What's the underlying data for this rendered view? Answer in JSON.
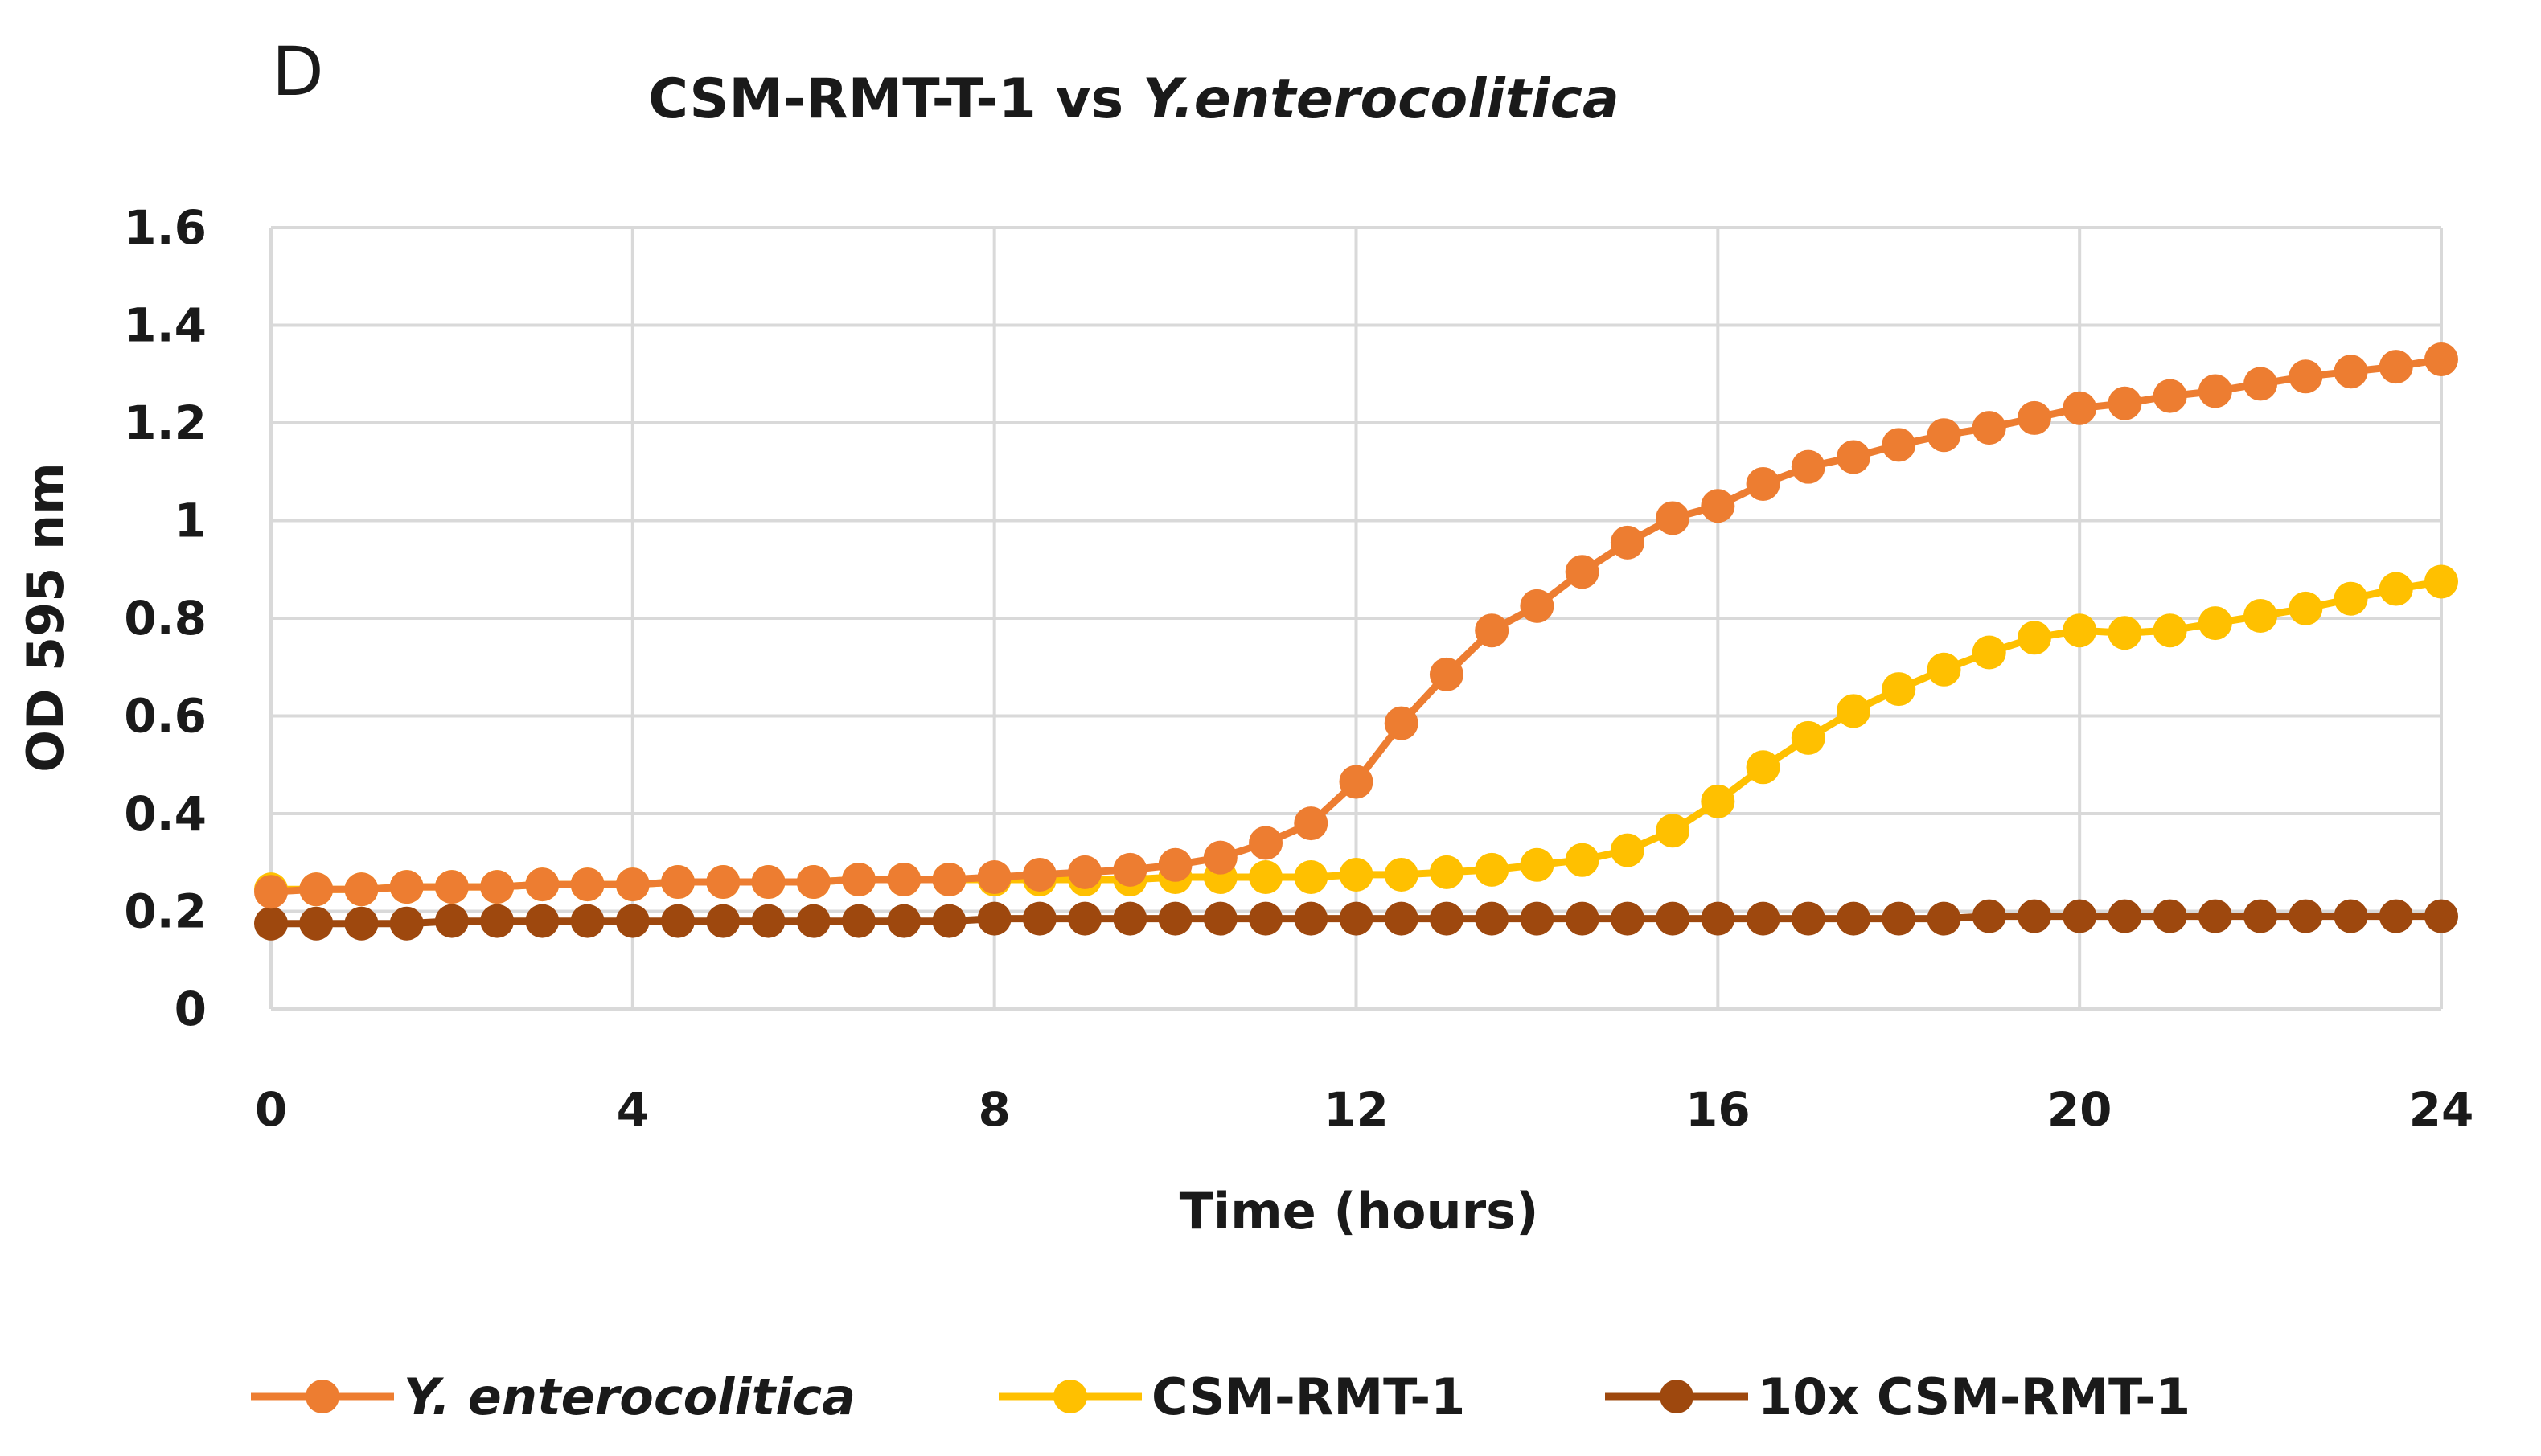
{
  "panel_label": "D",
  "chart_data": {
    "type": "line",
    "title": "CSM-RMT-T-1 vs Y.enterocolitica",
    "title_parts": [
      {
        "text": "CSM-RMT-T-1 vs ",
        "italic": false
      },
      {
        "text": "Y.enterocolitica",
        "italic": true
      }
    ],
    "xlabel": "Time (hours)",
    "ylabel": "OD 595 nm",
    "xlim": [
      0,
      24
    ],
    "ylim": [
      0,
      1.6
    ],
    "x_ticks": [
      "0",
      "4",
      "8",
      "12",
      "16",
      "20",
      "24"
    ],
    "y_ticks": [
      "0",
      "0.2",
      "0.4",
      "0.6",
      "0.8",
      "1",
      "1.2",
      "1.4",
      "1.6"
    ],
    "grid": true,
    "legend_position": "bottom",
    "x": [
      0,
      0.5,
      1,
      1.5,
      2,
      2.5,
      3,
      3.5,
      4,
      4.5,
      5,
      5.5,
      6,
      6.5,
      7,
      7.5,
      8,
      8.5,
      9,
      9.5,
      10,
      10.5,
      11,
      11.5,
      12,
      12.5,
      13,
      13.5,
      14,
      14.5,
      15,
      15.5,
      16,
      16.5,
      17,
      17.5,
      18,
      18.5,
      19,
      19.5,
      20,
      20.5,
      21,
      21.5,
      22,
      22.5,
      23,
      23.5,
      24
    ],
    "series": [
      {
        "name": "Y. enterocolitica",
        "italic": true,
        "color": "#ED7D31",
        "values": [
          0.24,
          0.245,
          0.245,
          0.25,
          0.25,
          0.25,
          0.255,
          0.255,
          0.255,
          0.26,
          0.26,
          0.26,
          0.26,
          0.265,
          0.265,
          0.265,
          0.27,
          0.275,
          0.28,
          0.285,
          0.295,
          0.31,
          0.34,
          0.38,
          0.465,
          0.585,
          0.685,
          0.775,
          0.825,
          0.895,
          0.955,
          1.005,
          1.03,
          1.075,
          1.11,
          1.13,
          1.155,
          1.175,
          1.19,
          1.21,
          1.23,
          1.24,
          1.255,
          1.265,
          1.28,
          1.295,
          1.305,
          1.315,
          1.33
        ]
      },
      {
        "name": "CSM-RMT-1",
        "italic": false,
        "color": "#FFC000",
        "values": [
          0.245,
          0.245,
          0.245,
          0.25,
          0.25,
          0.25,
          0.255,
          0.255,
          0.255,
          0.26,
          0.26,
          0.26,
          0.26,
          0.265,
          0.265,
          0.265,
          0.265,
          0.265,
          0.265,
          0.265,
          0.27,
          0.27,
          0.27,
          0.27,
          0.275,
          0.275,
          0.28,
          0.285,
          0.295,
          0.305,
          0.325,
          0.365,
          0.425,
          0.495,
          0.555,
          0.61,
          0.655,
          0.695,
          0.73,
          0.76,
          0.775,
          0.77,
          0.775,
          0.79,
          0.805,
          0.82,
          0.84,
          0.86,
          0.875
        ]
      },
      {
        "name": "10x CSM-RMT-1",
        "italic": false,
        "color": "#9E480E",
        "values": [
          0.175,
          0.175,
          0.175,
          0.175,
          0.18,
          0.18,
          0.18,
          0.18,
          0.18,
          0.18,
          0.18,
          0.18,
          0.18,
          0.18,
          0.18,
          0.18,
          0.185,
          0.185,
          0.185,
          0.185,
          0.185,
          0.185,
          0.185,
          0.185,
          0.185,
          0.185,
          0.185,
          0.185,
          0.185,
          0.185,
          0.185,
          0.185,
          0.185,
          0.185,
          0.185,
          0.185,
          0.185,
          0.185,
          0.19,
          0.19,
          0.19,
          0.19,
          0.19,
          0.19,
          0.19,
          0.19,
          0.19,
          0.19,
          0.19
        ]
      }
    ]
  }
}
